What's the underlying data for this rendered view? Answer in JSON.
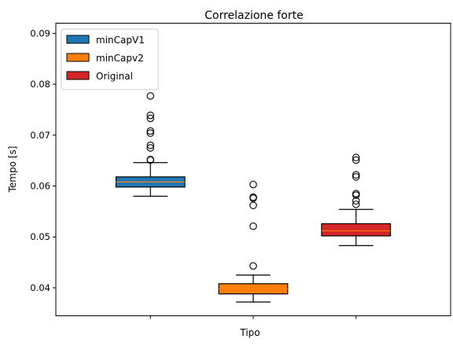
{
  "chart_data": {
    "type": "box",
    "title": "Correlazione forte",
    "xlabel": "Tipo",
    "ylabel": "Tempo [s]",
    "ylim": [
      0.0345,
      0.092
    ],
    "yticks": [
      "0.04",
      "0.05",
      "0.06",
      "0.07",
      "0.08",
      "0.09"
    ],
    "grid": false,
    "legend_position": "top-left",
    "series": [
      {
        "name": "minCapV1",
        "color": "#1f77b4",
        "whisker_low": 0.058,
        "q1": 0.0598,
        "median": 0.0608,
        "q3": 0.0618,
        "whisker_high": 0.0646,
        "outliers": [
          0.0651,
          0.0652,
          0.0675,
          0.068,
          0.0704,
          0.0708,
          0.0733,
          0.0739,
          0.0777
        ]
      },
      {
        "name": "minCapv2",
        "color": "#ff7f0e",
        "whisker_low": 0.0372,
        "q1": 0.0388,
        "median": 0.0398,
        "q3": 0.0408,
        "whisker_high": 0.0425,
        "outliers": [
          0.0443,
          0.0521,
          0.0562,
          0.0576,
          0.0578,
          0.0603
        ]
      },
      {
        "name": "Original",
        "color": "#d62728",
        "whisker_low": 0.0483,
        "q1": 0.0502,
        "median": 0.0512,
        "q3": 0.0526,
        "whisker_high": 0.0554,
        "outliers": [
          0.0564,
          0.0571,
          0.0582,
          0.0585,
          0.0618,
          0.0622,
          0.0651,
          0.0656
        ]
      }
    ]
  }
}
